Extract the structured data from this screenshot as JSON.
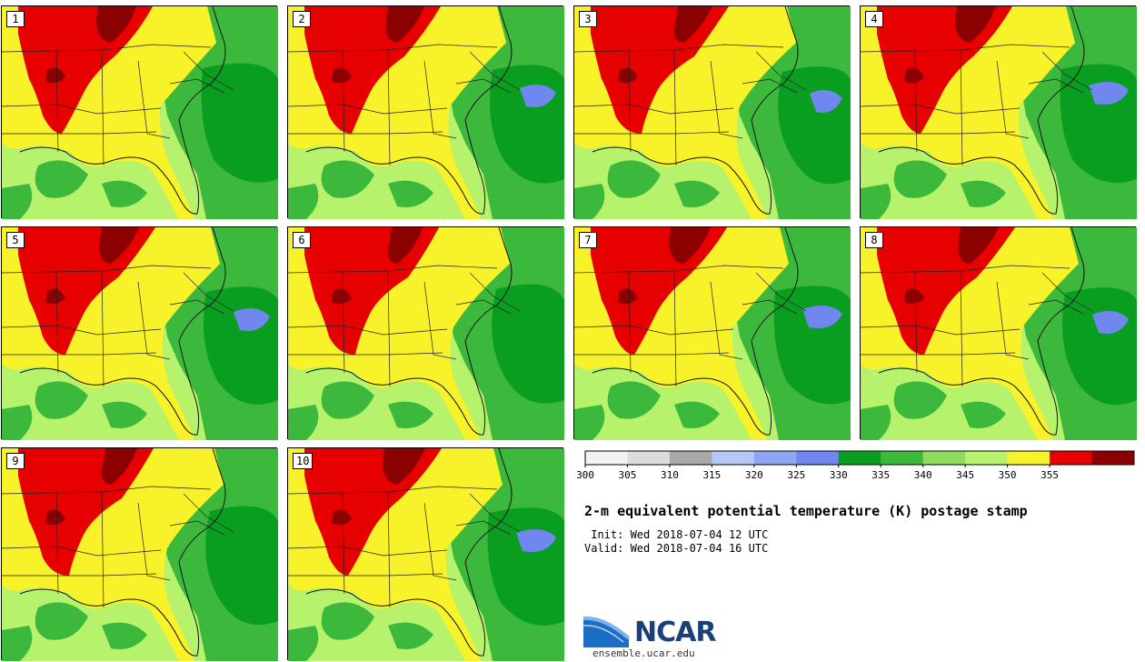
{
  "panels": [
    {
      "label": "1"
    },
    {
      "label": "2"
    },
    {
      "label": "3"
    },
    {
      "label": "4"
    },
    {
      "label": "5"
    },
    {
      "label": "6"
    },
    {
      "label": "7"
    },
    {
      "label": "8"
    },
    {
      "label": "9"
    },
    {
      "label": "10"
    }
  ],
  "colorbar": {
    "ticks": [
      "300",
      "305",
      "310",
      "315",
      "320",
      "325",
      "330",
      "335",
      "340",
      "345",
      "350",
      "355"
    ],
    "colors": [
      "#f2f2f2",
      "#dcdcdc",
      "#a8a8a8",
      "#b5c8f5",
      "#8ea6f2",
      "#6f87ee",
      "#0a9e20",
      "#3cb83c",
      "#8edc5c",
      "#b6f26b",
      "#f7f229",
      "#e60000",
      "#8b0000"
    ]
  },
  "map_colors": {
    "light_green": "#b6f26b",
    "green": "#3cb83c",
    "dark_green": "#0a9e20",
    "yellow": "#f7f229",
    "red": "#e60000",
    "dark_red": "#8b0000",
    "blue": "#6f87ee"
  },
  "title": "2-m equivalent potential temperature (K) postage stamp",
  "init": " Init: Wed 2018-07-04 12 UTC",
  "valid": "Valid: Wed 2018-07-04 16 UTC",
  "logo": {
    "name": "NCAR",
    "url": "ensemble.ucar.edu"
  }
}
